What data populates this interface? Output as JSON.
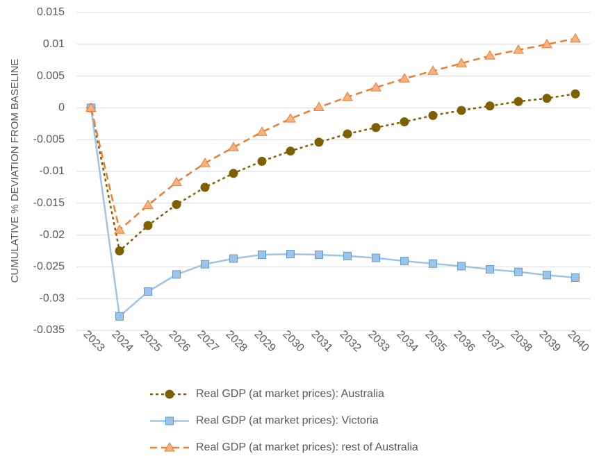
{
  "chart_data": {
    "type": "line",
    "y_label": "CUMULATIVE % DEVIATION FROM BASELINE",
    "categories": [
      "2023",
      "2024",
      "2025",
      "2026",
      "2027",
      "2028",
      "2029",
      "2030",
      "2031",
      "2032",
      "2033",
      "2034",
      "2035",
      "2036",
      "2037",
      "2038",
      "2039",
      "2040"
    ],
    "ylim": [
      -0.035,
      0.015
    ],
    "yticks": [
      0.015,
      0.01,
      0.005,
      0,
      -0.005,
      -0.01,
      -0.015,
      -0.02,
      -0.025,
      -0.03,
      -0.035
    ],
    "grid": true,
    "legend": "bottom",
    "series": [
      {
        "name": "Real GDP (at market prices): Australia",
        "color": "#7f6000",
        "marker": "circle",
        "dash": "dotted",
        "values": [
          0,
          -0.0225,
          -0.0185,
          -0.0152,
          -0.0125,
          -0.0103,
          -0.0084,
          -0.0068,
          -0.0054,
          -0.0041,
          -0.0031,
          -0.0022,
          -0.0012,
          -0.0004,
          0.0003,
          0.001,
          0.0015,
          0.0022
        ]
      },
      {
        "name": "Real GDP (at market prices): Victoria",
        "color": "#9dc3e6",
        "marker": "square",
        "dash": "solid",
        "values": [
          0,
          -0.0328,
          -0.0289,
          -0.0262,
          -0.0246,
          -0.0237,
          -0.0231,
          -0.023,
          -0.0231,
          -0.0233,
          -0.0236,
          -0.0241,
          -0.0245,
          -0.0249,
          -0.0254,
          -0.0258,
          -0.0263,
          -0.0267
        ]
      },
      {
        "name": "Real GDP (at market prices): rest of Australia",
        "color": "#ed7d31",
        "marker": "triangle",
        "dash": "dashed",
        "values": [
          0,
          -0.0192,
          -0.0153,
          -0.0117,
          -0.0087,
          -0.0062,
          -0.0038,
          -0.0017,
          0.0001,
          0.0017,
          0.0032,
          0.0046,
          0.0058,
          0.007,
          0.0082,
          0.0091,
          0.01,
          0.0109
        ]
      }
    ]
  }
}
